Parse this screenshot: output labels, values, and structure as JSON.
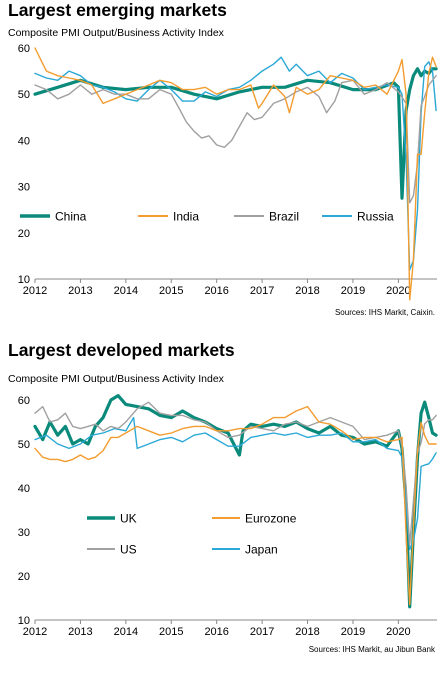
{
  "charts": [
    {
      "title": "Largest emerging markets",
      "subtitle": "Composite PMI Output/Business  Activity Index",
      "source": "Sources: IHS Markit, Caixin."
    },
    {
      "title": "Largest developed markets",
      "subtitle": "Composite PMI Output/Business  Activity Index",
      "source": "Sources: IHS Markit, au Jibun Bank"
    }
  ],
  "chart_data": [
    {
      "type": "line",
      "title": "Largest emerging markets",
      "subtitle": "Composite PMI Output/Business  Activity Index",
      "xlim": [
        2012,
        2020.85
      ],
      "ylim": [
        10,
        60
      ],
      "yticks": [
        10,
        20,
        30,
        40,
        50,
        60
      ],
      "xticks": [
        "2012",
        "2013",
        "2014",
        "2015",
        "2016",
        "2017",
        "2018",
        "2019",
        "2020"
      ],
      "legend_placement": "bottom-left",
      "series": [
        {
          "name": "China",
          "color": "#0a8a7a",
          "width": 3.2,
          "x": [
            2012.0,
            2012.5,
            2013.0,
            2013.5,
            2014.0,
            2014.5,
            2015.0,
            2015.5,
            2016.0,
            2016.5,
            2017.0,
            2017.5,
            2018.0,
            2018.5,
            2019.0,
            2019.5,
            2019.9,
            2020.0,
            2020.08,
            2020.17,
            2020.25,
            2020.33,
            2020.42,
            2020.5,
            2020.58,
            2020.67,
            2020.75,
            2020.83
          ],
          "y": [
            50,
            51.5,
            53,
            51.5,
            51,
            51.5,
            51.5,
            50,
            49,
            50.5,
            51.5,
            51.5,
            53,
            52.5,
            51,
            51,
            52.5,
            51.5,
            27.5,
            46.5,
            51,
            54,
            55.5,
            54,
            55,
            54.5,
            55.5,
            55.5
          ]
        },
        {
          "name": "India",
          "color": "#f39c2f",
          "width": 1.4,
          "x": [
            2012.0,
            2012.1,
            2012.25,
            2012.5,
            2012.75,
            2013.0,
            2013.25,
            2013.5,
            2013.75,
            2014.0,
            2014.25,
            2014.5,
            2014.75,
            2015.0,
            2015.25,
            2015.5,
            2015.75,
            2016.0,
            2016.25,
            2016.5,
            2016.75,
            2016.92,
            2017.0,
            2017.25,
            2017.5,
            2017.6,
            2017.75,
            2018.0,
            2018.25,
            2018.5,
            2018.75,
            2019.0,
            2019.25,
            2019.5,
            2019.75,
            2020.0,
            2020.08,
            2020.17,
            2020.25,
            2020.33,
            2020.42,
            2020.5,
            2020.58,
            2020.67,
            2020.75,
            2020.83
          ],
          "y": [
            60,
            58,
            55,
            54,
            53.5,
            53,
            52,
            48,
            49,
            50,
            51,
            52,
            53,
            52.5,
            51,
            51,
            51.5,
            50,
            51,
            51,
            52,
            47,
            48,
            52,
            49.5,
            46,
            51.5,
            50,
            51,
            54,
            53.5,
            53,
            51.5,
            52,
            50,
            55,
            57.5,
            50,
            5.5,
            14,
            37,
            37,
            46,
            54.5,
            58,
            56
          ]
        },
        {
          "name": "Brazil",
          "color": "#a0a0a0",
          "width": 1.4,
          "x": [
            2012.0,
            2012.25,
            2012.5,
            2012.75,
            2013.0,
            2013.25,
            2013.5,
            2013.75,
            2014.0,
            2014.25,
            2014.5,
            2014.75,
            2015.0,
            2015.17,
            2015.33,
            2015.5,
            2015.67,
            2015.83,
            2016.0,
            2016.17,
            2016.33,
            2016.5,
            2016.67,
            2016.83,
            2017.0,
            2017.25,
            2017.5,
            2017.75,
            2018.0,
            2018.25,
            2018.42,
            2018.6,
            2018.75,
            2019.0,
            2019.25,
            2019.5,
            2019.75,
            2020.0,
            2020.17,
            2020.25,
            2020.33,
            2020.42,
            2020.5,
            2020.58,
            2020.67,
            2020.75,
            2020.83
          ],
          "y": [
            52,
            51,
            49,
            50,
            52,
            50,
            51,
            50,
            50,
            49,
            49,
            51,
            50,
            47,
            44,
            42,
            40.5,
            41,
            39,
            38.5,
            40,
            43,
            46,
            44.5,
            45,
            48,
            49,
            50.5,
            51.5,
            49.5,
            46,
            48.5,
            52.5,
            53,
            50,
            51,
            52.5,
            50.5,
            48,
            26.5,
            28,
            35,
            47.5,
            49.5,
            52,
            53,
            54
          ]
        },
        {
          "name": "Russia",
          "color": "#2aa8d6",
          "width": 1.4,
          "x": [
            2012.0,
            2012.25,
            2012.5,
            2012.75,
            2013.0,
            2013.25,
            2013.5,
            2013.75,
            2014.0,
            2014.25,
            2014.5,
            2014.75,
            2015.0,
            2015.25,
            2015.5,
            2015.75,
            2016.0,
            2016.25,
            2016.5,
            2016.75,
            2017.0,
            2017.25,
            2017.42,
            2017.6,
            2017.75,
            2018.0,
            2018.25,
            2018.5,
            2018.75,
            2019.0,
            2019.25,
            2019.5,
            2019.75,
            2020.0,
            2020.08,
            2020.17,
            2020.25,
            2020.33,
            2020.42,
            2020.5,
            2020.58,
            2020.67,
            2020.75,
            2020.83
          ],
          "y": [
            54.5,
            53.5,
            53,
            55,
            54,
            52,
            51.5,
            50.5,
            49,
            48.5,
            51,
            53,
            51,
            48.5,
            48.5,
            50.5,
            49.5,
            51,
            51.5,
            53,
            55,
            56.5,
            58,
            55,
            56.5,
            54,
            55,
            52.5,
            54.5,
            53.5,
            51,
            51.5,
            52,
            51.5,
            50,
            36,
            12,
            14,
            25,
            46,
            56,
            57,
            55,
            46.5
          ]
        }
      ]
    },
    {
      "type": "line",
      "title": "Largest developed markets",
      "subtitle": "Composite PMI Output/Business  Activity Index",
      "xlim": [
        2012,
        2020.85
      ],
      "ylim": [
        10,
        60
      ],
      "yticks": [
        10,
        20,
        30,
        40,
        50,
        60
      ],
      "xticks": [
        "2012",
        "2013",
        "2014",
        "2015",
        "2016",
        "2017",
        "2018",
        "2019",
        "2020"
      ],
      "legend_placement": "middle",
      "series": [
        {
          "name": "UK",
          "color": "#0a8a7a",
          "width": 3.2,
          "x": [
            2012.0,
            2012.17,
            2012.33,
            2012.5,
            2012.67,
            2012.83,
            2013.0,
            2013.17,
            2013.33,
            2013.5,
            2013.67,
            2013.83,
            2014.0,
            2014.25,
            2014.5,
            2014.75,
            2015.0,
            2015.25,
            2015.5,
            2015.75,
            2016.0,
            2016.25,
            2016.5,
            2016.58,
            2016.75,
            2017.0,
            2017.25,
            2017.5,
            2017.75,
            2018.0,
            2018.25,
            2018.5,
            2018.75,
            2019.0,
            2019.25,
            2019.5,
            2019.75,
            2020.0,
            2020.08,
            2020.17,
            2020.25,
            2020.33,
            2020.42,
            2020.5,
            2020.58,
            2020.67,
            2020.75,
            2020.83
          ],
          "y": [
            54,
            51,
            55,
            52,
            54,
            50,
            51,
            50,
            54,
            56,
            60,
            61,
            59,
            58.5,
            58,
            56.5,
            56,
            57.5,
            56,
            55,
            53.5,
            52.5,
            47.5,
            53,
            54.5,
            54,
            54.5,
            54,
            55,
            53.5,
            52.5,
            54,
            52,
            51.5,
            50,
            50.5,
            49.5,
            53,
            49,
            36,
            13,
            30,
            47,
            57,
            59.5,
            56,
            52.5,
            52
          ]
        },
        {
          "name": "Eurozone",
          "color": "#f39c2f",
          "width": 1.4,
          "x": [
            2012.0,
            2012.17,
            2012.33,
            2012.5,
            2012.67,
            2012.83,
            2013.0,
            2013.17,
            2013.33,
            2013.5,
            2013.67,
            2013.83,
            2014.0,
            2014.25,
            2014.5,
            2014.75,
            2015.0,
            2015.25,
            2015.5,
            2015.75,
            2016.0,
            2016.25,
            2016.5,
            2016.75,
            2017.0,
            2017.25,
            2017.5,
            2017.75,
            2018.0,
            2018.25,
            2018.5,
            2018.75,
            2019.0,
            2019.25,
            2019.5,
            2019.75,
            2020.0,
            2020.08,
            2020.17,
            2020.25,
            2020.33,
            2020.42,
            2020.5,
            2020.58,
            2020.67,
            2020.75,
            2020.83
          ],
          "y": [
            49,
            47,
            46.5,
            46.5,
            46,
            46.5,
            47.5,
            46.5,
            47,
            48.5,
            51.5,
            51.5,
            52.5,
            54,
            53,
            52,
            52.5,
            53.5,
            54,
            54,
            53,
            53,
            53.5,
            53.5,
            54.5,
            56,
            56,
            57.5,
            58.5,
            55,
            54.5,
            53,
            51,
            51.5,
            51.5,
            50.5,
            51,
            51.5,
            29.5,
            13.5,
            31,
            48.5,
            54.9,
            51.9,
            50,
            50,
            50
          ]
        },
        {
          "name": "US",
          "color": "#a0a0a0",
          "width": 1.4,
          "x": [
            2012.0,
            2012.17,
            2012.33,
            2012.5,
            2012.67,
            2012.83,
            2013.0,
            2013.17,
            2013.33,
            2013.5,
            2013.67,
            2013.83,
            2014.0,
            2014.25,
            2014.5,
            2014.75,
            2015.0,
            2015.25,
            2015.5,
            2015.75,
            2016.0,
            2016.25,
            2016.5,
            2016.75,
            2017.0,
            2017.25,
            2017.5,
            2017.75,
            2018.0,
            2018.25,
            2018.5,
            2018.75,
            2019.0,
            2019.25,
            2019.5,
            2019.75,
            2020.0,
            2020.08,
            2020.17,
            2020.25,
            2020.33,
            2020.42,
            2020.5,
            2020.58,
            2020.67,
            2020.75,
            2020.83
          ],
          "y": [
            57,
            58.5,
            55,
            55.5,
            57,
            54,
            53.5,
            54,
            54.5,
            53,
            54,
            53.5,
            55,
            58,
            59.5,
            57,
            56.5,
            56.5,
            55.5,
            55,
            53,
            51.5,
            52,
            54,
            53.5,
            53,
            54.5,
            55,
            54,
            55,
            56,
            55,
            54,
            51,
            51.5,
            52,
            53,
            49.5,
            40.5,
            27,
            37,
            47.9,
            50.3,
            54.6,
            55.5,
            55.5,
            56.5
          ]
        },
        {
          "name": "Japan",
          "color": "#2aa8d6",
          "width": 1.4,
          "x": [
            2012.0,
            2012.25,
            2012.5,
            2012.75,
            2013.0,
            2013.25,
            2013.5,
            2013.75,
            2014.0,
            2014.17,
            2014.25,
            2014.5,
            2014.75,
            2015.0,
            2015.25,
            2015.5,
            2015.75,
            2016.0,
            2016.25,
            2016.5,
            2016.75,
            2017.0,
            2017.25,
            2017.5,
            2017.75,
            2018.0,
            2018.25,
            2018.5,
            2018.75,
            2019.0,
            2019.25,
            2019.5,
            2019.75,
            2020.0,
            2020.08,
            2020.17,
            2020.25,
            2020.33,
            2020.42,
            2020.5,
            2020.58,
            2020.67,
            2020.75,
            2020.83
          ],
          "y": [
            51,
            52,
            50,
            49,
            50,
            52,
            52.5,
            53.5,
            53,
            56,
            49,
            50,
            51,
            51.5,
            50.5,
            52,
            52.5,
            51,
            49.5,
            49.5,
            51.5,
            52,
            52.5,
            52,
            52.5,
            51.5,
            52,
            52,
            52.5,
            50.5,
            50.5,
            51,
            49,
            48.5,
            47,
            36,
            26,
            28,
            33,
            44.9,
            45.2,
            45.5,
            46.6,
            48
          ]
        }
      ]
    }
  ]
}
